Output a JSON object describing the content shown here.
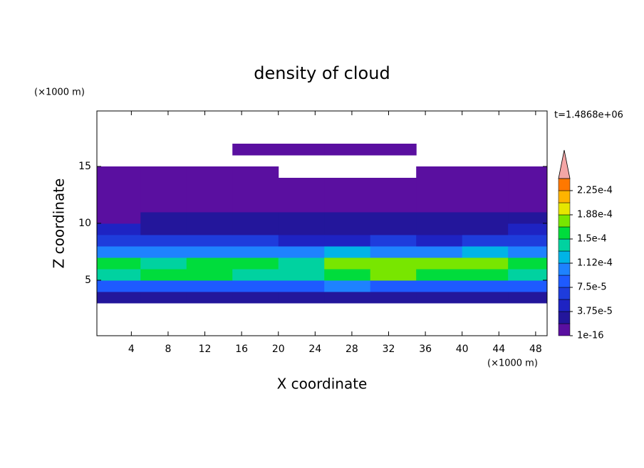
{
  "chart_data": {
    "type": "contour",
    "title": "density of cloud",
    "x_label": "X coordinate",
    "y_label": "Z coordinate",
    "x_unit": "(×1000 m)",
    "y_unit": "(×1000 m)",
    "annotation": "t=1.4868e+06",
    "xlim": [
      0.25,
      49.25
    ],
    "ylim": [
      0.125,
      19.875
    ],
    "xticks": [
      4,
      8,
      12,
      16,
      20,
      24,
      28,
      32,
      36,
      40,
      44,
      48
    ],
    "yticks": [
      5,
      10,
      15
    ],
    "x": [
      2.5,
      7.5,
      12.5,
      17.5,
      22.5,
      27.5,
      32.5,
      37.5,
      42.5,
      47.5
    ],
    "y": [
      3.5,
      4.5,
      5.5,
      6.5,
      7.5,
      8.5,
      9.5,
      10.5,
      11.5,
      12.5,
      13.5,
      14.5,
      15.5,
      16.5
    ],
    "values": [
      [
        3e-05,
        3e-05,
        3e-05,
        3e-05,
        3e-05,
        3e-05,
        3e-05,
        3e-05,
        3e-05,
        3e-05
      ],
      [
        9e-05,
        9e-05,
        9e-05,
        8e-05,
        8e-05,
        0.0001,
        9e-05,
        8e-05,
        9e-05,
        9e-05
      ],
      [
        0.00015,
        0.000155,
        0.00016,
        0.00015,
        0.000145,
        0.00016,
        0.00017,
        0.00016,
        0.00016,
        0.00015
      ],
      [
        0.00016,
        0.00015,
        0.00016,
        0.000155,
        0.00015,
        0.00017,
        0.000175,
        0.00018,
        0.00017,
        0.00016
      ],
      [
        0.00011,
        0.0001,
        0.00011,
        0.0001,
        0.0001,
        0.00012,
        0.00011,
        0.0001,
        0.00012,
        0.00011
      ],
      [
        7e-05,
        6e-05,
        6e-05,
        6e-05,
        5e-05,
        5e-05,
        6e-05,
        5e-05,
        6e-05,
        7e-05
      ],
      [
        4e-05,
        3.5e-05,
        3.5e-05,
        3.5e-05,
        3e-05,
        3e-05,
        3.5e-05,
        3e-05,
        3e-05,
        4e-05
      ],
      [
        5e-06,
        2e-05,
        2e-05,
        2.5e-05,
        2.5e-05,
        2.5e-05,
        2.5e-05,
        2.5e-05,
        2.5e-05,
        2e-05
      ],
      [
        1.5e-05,
        1.5e-05,
        1.5e-05,
        1.5e-05,
        1.5e-05,
        1.5e-05,
        1.5e-05,
        1.5e-05,
        1.5e-05,
        1.5e-05
      ],
      [
        1e-05,
        1e-05,
        1e-05,
        1e-05,
        1e-05,
        1e-05,
        1e-05,
        1e-05,
        1e-05,
        1e-05
      ],
      [
        8e-06,
        8e-06,
        8e-06,
        8e-06,
        8e-06,
        8e-06,
        8e-06,
        8e-06,
        8e-06,
        8e-06
      ],
      [
        5e-06,
        5e-06,
        5e-06,
        5e-06,
        null,
        null,
        null,
        5e-06,
        5e-06,
        5e-06
      ],
      [
        null,
        null,
        null,
        null,
        null,
        null,
        null,
        null,
        null,
        null
      ],
      [
        null,
        null,
        null,
        5e-06,
        5e-06,
        5e-06,
        5e-06,
        null,
        null,
        null
      ]
    ],
    "clim": [
      1e-16,
      0.00024375
    ],
    "colors": [
      "#5a0fa0",
      "#23169b",
      "#1e23c3",
      "#1e3cdc",
      "#1e5aff",
      "#1e82ff",
      "#00b4e6",
      "#00d2a0",
      "#00dc3c",
      "#78e600",
      "#e6e600",
      "#ffb400",
      "#ff7800"
    ],
    "extend_color": "#f4a6a6",
    "colorbar_ticks": [
      {
        "value": 1e-16,
        "label": "1e-16"
      },
      {
        "value": 3.75e-05,
        "label": "3.75e-5"
      },
      {
        "value": 7.5e-05,
        "label": "7.5e-5"
      },
      {
        "value": 0.0001125,
        "label": "1.12e-4"
      },
      {
        "value": 0.00015,
        "label": "1.5e-4"
      },
      {
        "value": 0.0001875,
        "label": "1.88e-4"
      },
      {
        "value": 0.000225,
        "label": "2.25e-4"
      }
    ]
  }
}
